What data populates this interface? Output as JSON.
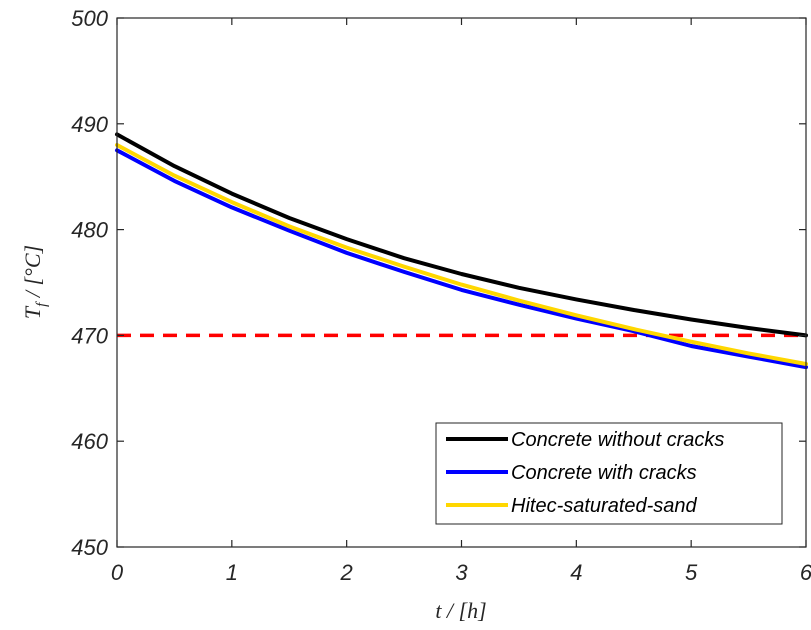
{
  "chart_data": {
    "type": "line",
    "xlabel": "t / [h]",
    "ylabel": "T_f / [°C]",
    "ylabel_main": "T",
    "ylabel_sub": "f",
    "ylabel_rest": " / [°C]",
    "xlim": [
      0,
      6
    ],
    "ylim": [
      450,
      500
    ],
    "xticks": [
      "0",
      "1",
      "2",
      "3",
      "4",
      "5",
      "6"
    ],
    "yticks": [
      "450",
      "460",
      "470",
      "480",
      "490",
      "500"
    ],
    "grid": false,
    "legend_position": "bottom-right",
    "reference_line": {
      "y": 470,
      "style": "dashed",
      "color": "#ff0000"
    },
    "series": [
      {
        "name": "Concrete without cracks",
        "color": "#000000",
        "x": [
          0,
          0.5,
          1,
          1.5,
          2,
          2.5,
          3,
          3.5,
          4,
          4.5,
          5,
          5.5,
          6
        ],
        "values": [
          489.0,
          486.0,
          483.4,
          481.1,
          479.1,
          477.3,
          475.8,
          474.5,
          473.4,
          472.4,
          471.5,
          470.7,
          470.0
        ]
      },
      {
        "name": "Concrete with cracks",
        "color": "#0000ff",
        "x": [
          0,
          0.5,
          1,
          1.5,
          2,
          2.5,
          3,
          3.5,
          4,
          4.5,
          5,
          5.5,
          6
        ],
        "values": [
          487.5,
          484.6,
          482.1,
          479.9,
          477.8,
          476.0,
          474.3,
          472.9,
          471.6,
          470.4,
          469.0,
          468.0,
          467.0
        ]
      },
      {
        "name": "Hitec-saturated-sand",
        "color": "#ffd700",
        "x": [
          0,
          0.5,
          1,
          1.5,
          2,
          2.5,
          3,
          3.5,
          4,
          4.5,
          5,
          5.5,
          6
        ],
        "values": [
          488.0,
          485.1,
          482.6,
          480.3,
          478.3,
          476.5,
          474.8,
          473.3,
          471.9,
          470.6,
          469.4,
          468.3,
          467.3
        ]
      }
    ]
  }
}
